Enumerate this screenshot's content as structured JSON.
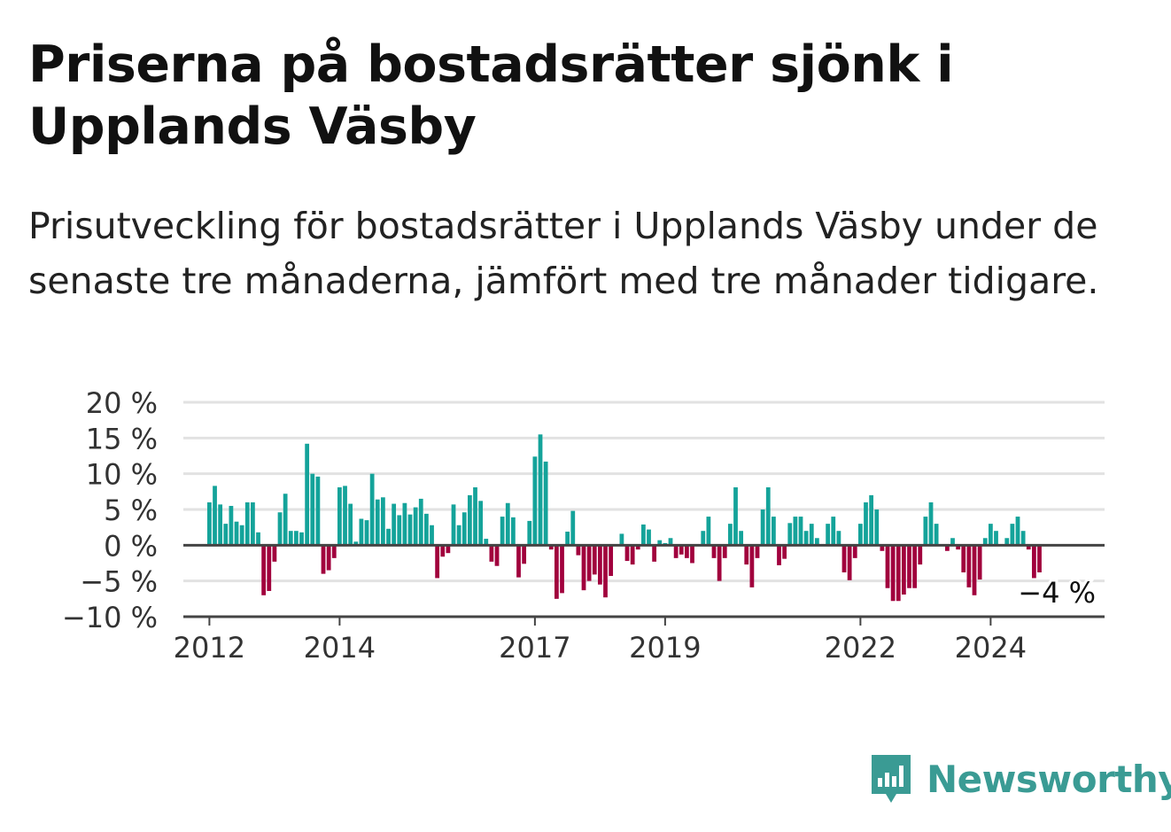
{
  "title": "Priserna på bostadsrätter sjönk i Upplands Väsby",
  "subtitle": "Prisutveckling för bostadsrätter i Upplands Väsby under de senaste tre månaderna, jämfört med tre månader tidigare.",
  "brand": {
    "name": "Newsworthy",
    "color": "#3a9b94"
  },
  "colors": {
    "positive": "#14a39a",
    "negative": "#a1003d",
    "grid": "#e2e2e2",
    "zero_line": "#444444"
  },
  "chart_data": {
    "type": "bar",
    "title": "Priserna på bostadsrätter sjönk i Upplands Väsby",
    "ylabel": "",
    "xlabel": "",
    "ylim": [
      -10,
      20
    ],
    "y_ticks": [
      20,
      15,
      10,
      5,
      0,
      -5,
      -10
    ],
    "y_tick_labels": [
      "20 %",
      "15 %",
      "10 %",
      "5 %",
      "0 %",
      "−5 %",
      "−10 %"
    ],
    "x_range": [
      2011.6,
      2025.75
    ],
    "x_ticks": [
      2012,
      2014,
      2017,
      2019,
      2022,
      2024
    ],
    "x_tick_labels": [
      "2012",
      "2014",
      "2017",
      "2019",
      "2022",
      "2024"
    ],
    "grid": true,
    "start": "2012-01",
    "interval": "month",
    "last_value_label": "−4 %",
    "values": [
      6,
      8.3,
      5.7,
      3,
      5.5,
      3.3,
      2.8,
      6,
      6,
      1.8,
      -7,
      -6.4,
      -2.3,
      4.6,
      7.2,
      2,
      2,
      1.8,
      14.2,
      10,
      9.6,
      -4,
      -3.5,
      -1.8,
      8.1,
      8.3,
      5.8,
      0.5,
      3.7,
      3.5,
      10,
      6.4,
      6.7,
      2.3,
      5.8,
      4.2,
      5.9,
      4.3,
      5.3,
      6.5,
      4.4,
      2.8,
      -4.6,
      -1.6,
      -1.1,
      5.7,
      2.8,
      4.6,
      7,
      8.1,
      6.2,
      0.9,
      -2.3,
      -2.9,
      4,
      5.9,
      3.9,
      -4.5,
      -2.6,
      3.4,
      12.4,
      15.5,
      11.7,
      -0.6,
      -7.5,
      -6.7,
      1.9,
      4.8,
      -1.4,
      -6.3,
      -5,
      -4.1,
      -5.5,
      -7.3,
      -4.3,
      0,
      1.6,
      -2.2,
      -2.7,
      -0.6,
      2.9,
      2.2,
      -2.3,
      0.7,
      0.3,
      1,
      -1.8,
      -1.3,
      -1.8,
      -2.5,
      0,
      2,
      4,
      -1.8,
      -5,
      -1.8,
      3,
      8.1,
      2,
      -2.7,
      -5.9,
      -1.8,
      5,
      8.1,
      4,
      -2.8,
      -1.9,
      3.1,
      4,
      4,
      2,
      3,
      1,
      0,
      3,
      4,
      2,
      -3.8,
      -4.9,
      -1.8,
      3,
      6,
      7,
      5,
      -0.8,
      -6,
      -7.8,
      -7.8,
      -6.9,
      -6,
      -6,
      -2.7,
      4,
      6,
      3,
      0,
      -0.8,
      1,
      -0.6,
      -3.8,
      -5.9,
      -7,
      -4.8,
      1,
      3,
      2,
      0,
      1,
      3,
      4,
      2,
      -0.6,
      -4.6,
      -3.8
    ]
  }
}
